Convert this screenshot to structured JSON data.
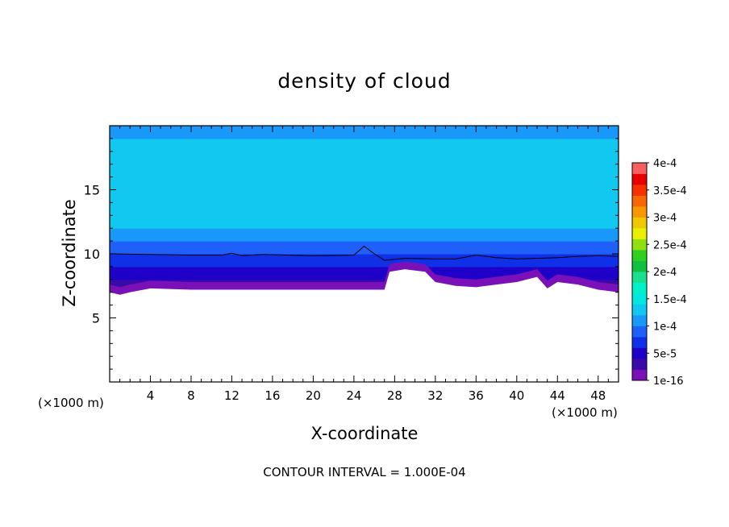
{
  "chart_data": {
    "type": "heatmap",
    "title": "density of cloud",
    "xlabel": "X-coordinate",
    "ylabel": "Z-coordinate",
    "x_unit_left": "(×1000 m)",
    "x_unit_right": "(×1000 m)",
    "xlim": [
      0,
      50
    ],
    "ylim": [
      0,
      20
    ],
    "x_ticks": [
      4,
      8,
      12,
      16,
      20,
      24,
      28,
      32,
      36,
      40,
      44,
      48
    ],
    "y_ticks": [
      5,
      10,
      15
    ],
    "colorbar": {
      "labels": [
        "1e-16",
        "5e-5",
        "1e-4",
        "1.5e-4",
        "2e-4",
        "2.5e-4",
        "3e-4",
        "3.5e-4",
        "4e-4"
      ],
      "levels": [
        1e-16,
        5e-05,
        0.0001,
        0.00015,
        0.0002,
        0.00025,
        0.0003,
        0.00035,
        0.0004
      ],
      "colors": [
        "#7a10b8",
        "#3a0aa8",
        "#1e00c8",
        "#1030e8",
        "#1e60f8",
        "#1898f8",
        "#10c8f0",
        "#00e8e0",
        "#00f0c8",
        "#18e090",
        "#10c040",
        "#30d020",
        "#90e010",
        "#e8f000",
        "#f0c800",
        "#f89800",
        "#f86800",
        "#f83000",
        "#e80000",
        "#f86060"
      ]
    },
    "field_profile": {
      "z_km": [
        7.2,
        8.0,
        8.5,
        9.0,
        9.5,
        10.0,
        10.5,
        11.0,
        11.5,
        12.0,
        12.5,
        13.0,
        16.5,
        17.0,
        17.5,
        18.0,
        19.0,
        20.0
      ],
      "density": [
        2e-05,
        4e-05,
        5.5e-05,
        6.5e-05,
        7.5e-05,
        8.2e-05,
        9e-05,
        0.0001,
        0.00011,
        0.00012,
        0.000128,
        0.000138,
        0.000138,
        0.00013,
        0.000125,
        0.000122,
        0.00012,
        0.000118
      ]
    },
    "cloud_base_km": [
      [
        0,
        7.0
      ],
      [
        1,
        6.8
      ],
      [
        2,
        7.0
      ],
      [
        4,
        7.3
      ],
      [
        8,
        7.2
      ],
      [
        23,
        7.2
      ],
      [
        27,
        7.2
      ],
      [
        27.5,
        8.6
      ],
      [
        29,
        8.8
      ],
      [
        31,
        8.6
      ],
      [
        32,
        7.8
      ],
      [
        34,
        7.5
      ],
      [
        36,
        7.4
      ],
      [
        38,
        7.6
      ],
      [
        40,
        7.8
      ],
      [
        42,
        8.2
      ],
      [
        43,
        7.3
      ],
      [
        44,
        7.8
      ],
      [
        46,
        7.6
      ],
      [
        48,
        7.2
      ],
      [
        50,
        7.0
      ]
    ],
    "contour_line_km": [
      [
        0,
        10.0
      ],
      [
        4,
        9.95
      ],
      [
        8,
        9.9
      ],
      [
        11,
        9.9
      ],
      [
        12,
        10.05
      ],
      [
        13,
        9.85
      ],
      [
        15,
        9.95
      ],
      [
        20,
        9.85
      ],
      [
        24,
        9.9
      ],
      [
        25,
        10.6
      ],
      [
        26,
        10.0
      ],
      [
        27,
        9.5
      ],
      [
        29,
        9.65
      ],
      [
        32,
        9.6
      ],
      [
        34,
        9.6
      ],
      [
        36,
        9.9
      ],
      [
        38,
        9.7
      ],
      [
        40,
        9.6
      ],
      [
        44,
        9.7
      ],
      [
        46,
        9.8
      ],
      [
        48,
        9.85
      ],
      [
        50,
        9.8
      ]
    ],
    "footer": "CONTOUR INTERVAL = 1.000E-04"
  }
}
